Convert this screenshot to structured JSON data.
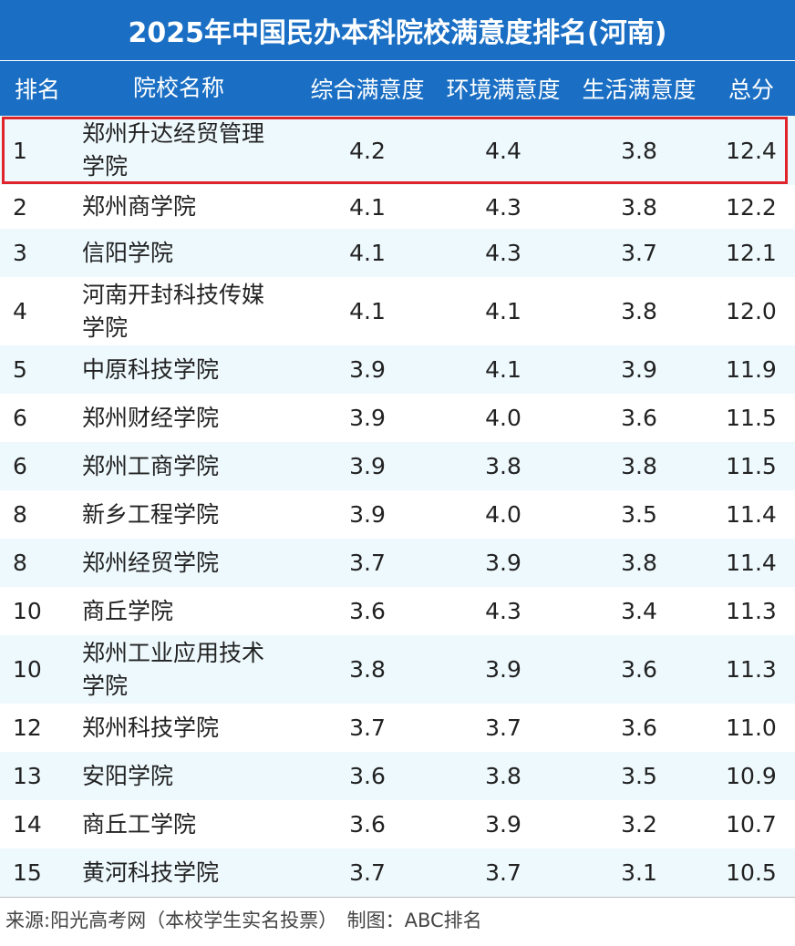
{
  "title": "2025年中国民办本科院校满意度排名(河南)",
  "headers": {
    "rank": "排名",
    "name": "院校名称",
    "overall": "综合满意度",
    "env": "环境满意度",
    "life": "生活满意度",
    "total": "总分"
  },
  "rows": [
    {
      "rank": "1",
      "name": "郑州升达经贸管理学院",
      "overall": "4.2",
      "env": "4.4",
      "life": "3.8",
      "total": "12.4"
    },
    {
      "rank": "2",
      "name": "郑州商学院",
      "overall": "4.1",
      "env": "4.3",
      "life": "3.8",
      "total": "12.2"
    },
    {
      "rank": "3",
      "name": "信阳学院",
      "overall": "4.1",
      "env": "4.3",
      "life": "3.7",
      "total": "12.1"
    },
    {
      "rank": "4",
      "name": "河南开封科技传媒学院",
      "overall": "4.1",
      "env": "4.1",
      "life": "3.8",
      "total": "12.0"
    },
    {
      "rank": "5",
      "name": "中原科技学院",
      "overall": "3.9",
      "env": "4.1",
      "life": "3.9",
      "total": "11.9"
    },
    {
      "rank": "6",
      "name": "郑州财经学院",
      "overall": "3.9",
      "env": "4.0",
      "life": "3.6",
      "total": "11.5"
    },
    {
      "rank": "6",
      "name": "郑州工商学院",
      "overall": "3.9",
      "env": "3.8",
      "life": "3.8",
      "total": "11.5"
    },
    {
      "rank": "8",
      "name": "新乡工程学院",
      "overall": "3.9",
      "env": "4.0",
      "life": "3.5",
      "total": "11.4"
    },
    {
      "rank": "8",
      "name": "郑州经贸学院",
      "overall": "3.7",
      "env": "3.9",
      "life": "3.8",
      "total": "11.4"
    },
    {
      "rank": "10",
      "name": "商丘学院",
      "overall": "3.6",
      "env": "4.3",
      "life": "3.4",
      "total": "11.3"
    },
    {
      "rank": "10",
      "name": "郑州工业应用技术学院",
      "overall": "3.8",
      "env": "3.9",
      "life": "3.6",
      "total": "11.3"
    },
    {
      "rank": "12",
      "name": "郑州科技学院",
      "overall": "3.7",
      "env": "3.7",
      "life": "3.6",
      "total": "11.0"
    },
    {
      "rank": "13",
      "name": "安阳学院",
      "overall": "3.6",
      "env": "3.8",
      "life": "3.5",
      "total": "10.9"
    },
    {
      "rank": "14",
      "name": "商丘工学院",
      "overall": "3.6",
      "env": "3.9",
      "life": "3.2",
      "total": "10.7"
    },
    {
      "rank": "15",
      "name": "黄河科技学院",
      "overall": "3.7",
      "env": "3.7",
      "life": "3.1",
      "total": "10.5"
    }
  ],
  "footer": "来源:阳光高考网（本校学生实名投票）　制图：ABC排名",
  "colors": {
    "header_bg": "#1a6fc4",
    "alt_row": "#eef9fd",
    "highlight": "#e0242b"
  }
}
